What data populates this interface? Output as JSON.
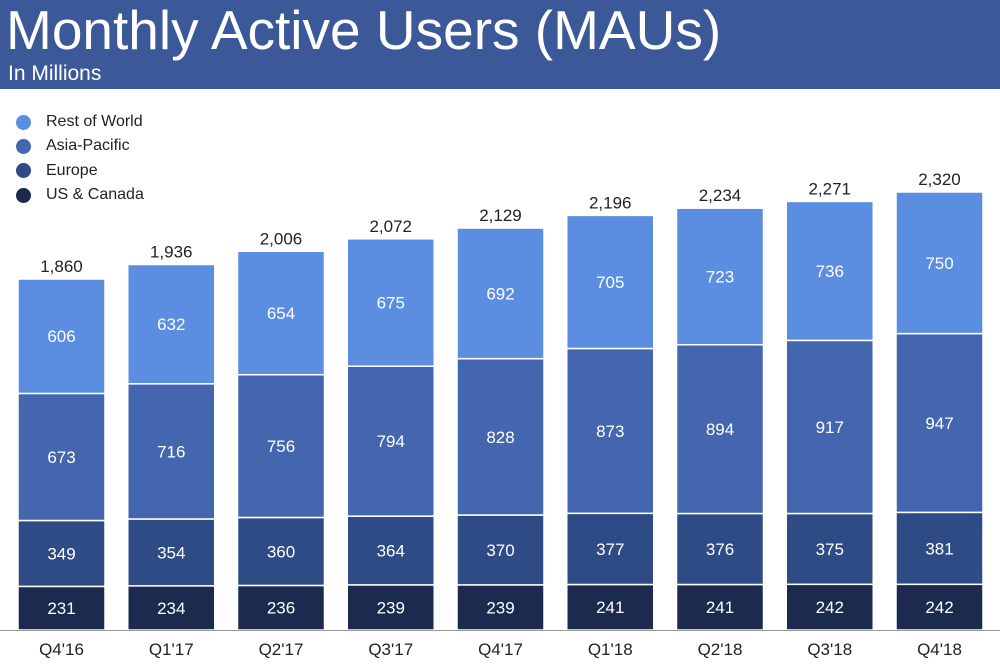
{
  "header": {
    "title": "Monthly Active Users (MAUs)",
    "subtitle": "In Millions",
    "background": "#3b5998"
  },
  "chart_data": {
    "type": "bar",
    "stacked": true,
    "title": "Monthly Active Users (MAUs)",
    "subtitle": "In Millions",
    "xlabel": "",
    "ylabel": "",
    "ylim": [
      0,
      2500
    ],
    "grid": false,
    "legend_position": "top-left",
    "categories": [
      "Q4'16",
      "Q1'17",
      "Q2'17",
      "Q3'17",
      "Q4'17",
      "Q1'18",
      "Q2'18",
      "Q3'18",
      "Q4'18"
    ],
    "totals": [
      "1,860",
      "1,936",
      "2,006",
      "2,072",
      "2,129",
      "2,196",
      "2,234",
      "2,271",
      "2,320"
    ],
    "series": [
      {
        "name": "US & Canada",
        "color": "#1b2a4e",
        "values": [
          231,
          234,
          236,
          239,
          239,
          241,
          241,
          242,
          242
        ]
      },
      {
        "name": "Europe",
        "color": "#2f4b85",
        "values": [
          349,
          354,
          360,
          364,
          370,
          377,
          376,
          375,
          381
        ]
      },
      {
        "name": "Asia-Pacific",
        "color": "#4466ae",
        "values": [
          673,
          716,
          756,
          794,
          828,
          873,
          894,
          917,
          947
        ]
      },
      {
        "name": "Rest of World",
        "color": "#5b8ee0",
        "values": [
          606,
          632,
          654,
          675,
          692,
          705,
          723,
          736,
          750
        ]
      }
    ]
  }
}
